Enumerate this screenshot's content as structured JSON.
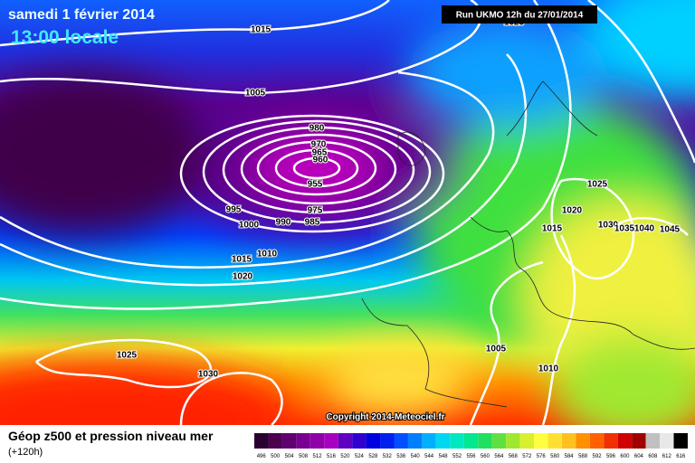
{
  "header": {
    "date": "samedi 1 février 2014",
    "time": "13:00 locale",
    "run": "Run UKMO 12h du 27/01/2014"
  },
  "isobar_labels": [
    1015,
    1025,
    1005,
    980,
    970,
    965,
    960,
    955,
    975,
    985,
    990,
    995,
    1000,
    1010,
    1015,
    1020,
    1025,
    1020,
    1015,
    1030,
    1035,
    1040,
    1045,
    1005,
    1010,
    1025,
    1030
  ],
  "copyright": "Copyright 2014-Meteociel.fr",
  "legend": {
    "title": "Géop z500 et pression niveau mer",
    "lead": "(+120h)",
    "scale": [
      496,
      500,
      504,
      508,
      512,
      516,
      520,
      524,
      528,
      532,
      536,
      540,
      544,
      548,
      552,
      556,
      560,
      564,
      568,
      572,
      576,
      580,
      584,
      588,
      592,
      596,
      600,
      604,
      608,
      612,
      616
    ]
  }
}
